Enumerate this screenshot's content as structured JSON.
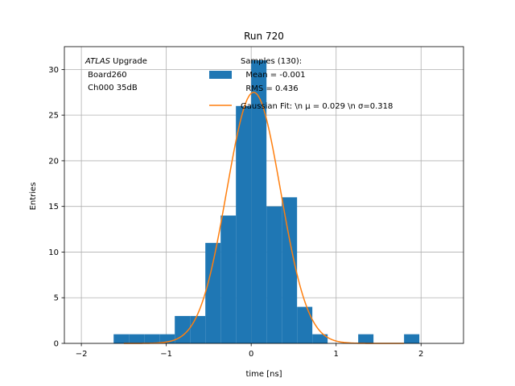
{
  "chart_data": {
    "type": "bar",
    "title": "Run 720",
    "xlabel": "time [ns]",
    "ylabel": "Entries",
    "xlim": [
      -2.2,
      2.5
    ],
    "ylim": [
      0,
      32.5
    ],
    "xticks": [
      -2,
      -1,
      0,
      1,
      2
    ],
    "yticks": [
      0,
      5,
      10,
      15,
      20,
      25,
      30
    ],
    "grid": true,
    "annotation": {
      "atlas": "ATLAS",
      "line1_rest": " Upgrade",
      "line2": " Board260",
      "line3": " Ch000 35dB"
    },
    "legend": {
      "placement": "top-right",
      "hist_label_lines": [
        "Samples (130):",
        "  Mean = -0.001",
        "  RMS = 0.436"
      ],
      "fit_label": "Gaussian Fit: \\n μ = 0.029 \\n σ=0.318"
    },
    "histogram": {
      "color": "#1f77b4",
      "bins": [
        {
          "x0": -1.62,
          "x1": -1.44,
          "count": 1
        },
        {
          "x0": -1.44,
          "x1": -1.26,
          "count": 1
        },
        {
          "x0": -1.26,
          "x1": -1.08,
          "count": 1
        },
        {
          "x0": -1.08,
          "x1": -0.9,
          "count": 1
        },
        {
          "x0": -0.9,
          "x1": -0.72,
          "count": 3
        },
        {
          "x0": -0.72,
          "x1": -0.54,
          "count": 3
        },
        {
          "x0": -0.54,
          "x1": -0.36,
          "count": 11
        },
        {
          "x0": -0.36,
          "x1": -0.18,
          "count": 14
        },
        {
          "x0": -0.18,
          "x1": 0.0,
          "count": 26
        },
        {
          "x0": 0.0,
          "x1": 0.18,
          "count": 31
        },
        {
          "x0": 0.18,
          "x1": 0.36,
          "count": 15
        },
        {
          "x0": 0.36,
          "x1": 0.54,
          "count": 16
        },
        {
          "x0": 0.54,
          "x1": 0.72,
          "count": 4
        },
        {
          "x0": 0.72,
          "x1": 0.9,
          "count": 1
        },
        {
          "x0": 1.26,
          "x1": 1.44,
          "count": 1
        },
        {
          "x0": 1.8,
          "x1": 1.98,
          "count": 1
        }
      ]
    },
    "gaussian_fit": {
      "color": "#ff7f0e",
      "mu": 0.029,
      "sigma": 0.318,
      "amplitude": 27.5,
      "x_range": [
        -1.5,
        1.8
      ]
    }
  }
}
